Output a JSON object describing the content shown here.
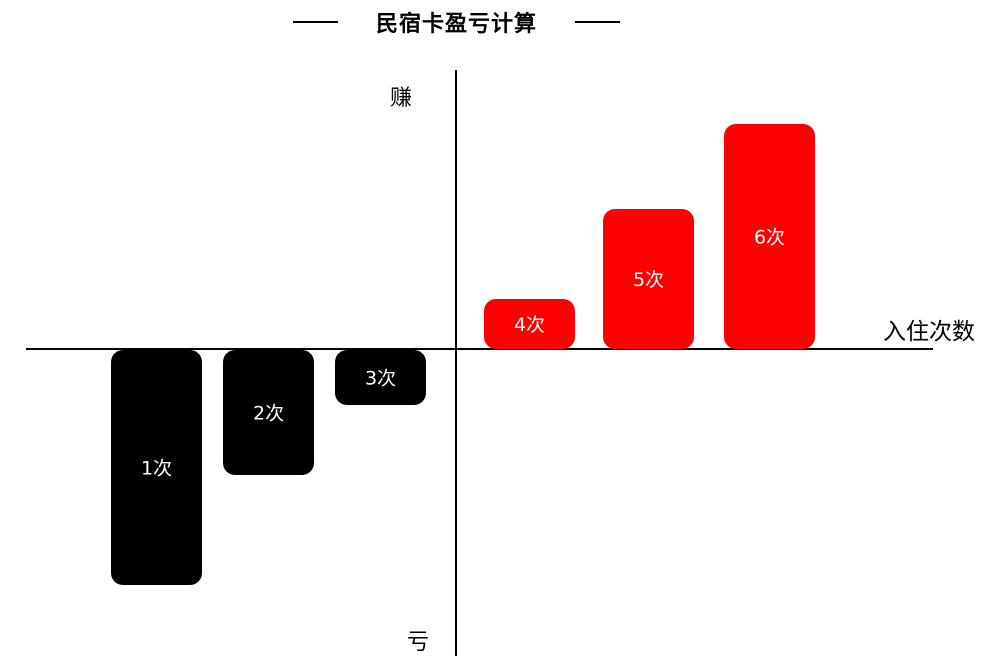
{
  "chart_data": {
    "type": "bar",
    "title": "民宿卡盈亏计算",
    "xlabel": "入住次数",
    "ylabel_top": "赚",
    "ylabel_bottom": "亏",
    "categories": [
      "1次",
      "2次",
      "3次",
      "4次",
      "5次",
      "6次"
    ],
    "values": [
      -4.7,
      -2.5,
      -1.1,
      1.0,
      2.8,
      4.5
    ],
    "ylim": [
      -6.1,
      5.6
    ],
    "grid": false,
    "colors": {
      "loss": "#000000",
      "profit": "#ff0000",
      "label": "#ffffff"
    }
  }
}
